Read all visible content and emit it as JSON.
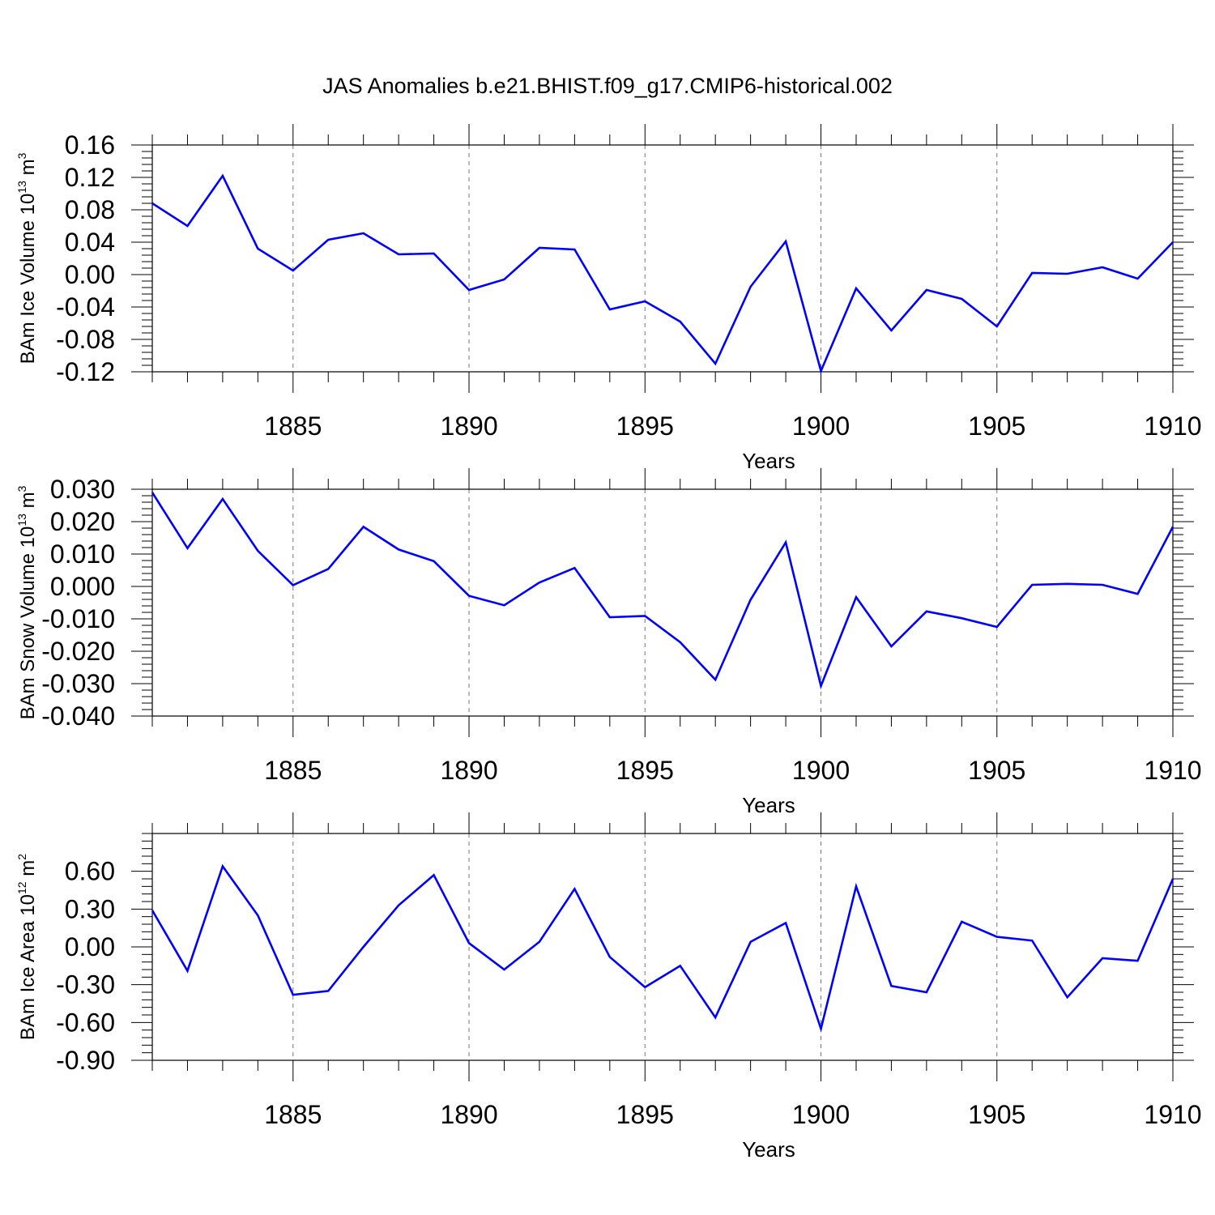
{
  "figure": {
    "title": "JAS Anomalies b.e21.BHIST.f09_g17.CMIP6-historical.002",
    "line_color": "#0000ff",
    "grid_color": "#777777"
  },
  "chart_data": [
    {
      "type": "line",
      "title": "",
      "xlabel": "Years",
      "ylabel": {
        "text": "BAm Ice Volume 10",
        "exp": "13",
        "unit": " m",
        "unit_exp": "3"
      },
      "xlim": [
        1881,
        1910
      ],
      "ylim": [
        -0.12,
        0.16
      ],
      "xticks": [
        1885,
        1890,
        1895,
        1900,
        1905,
        1910
      ],
      "yticks": [
        -0.12,
        -0.08,
        -0.04,
        0.0,
        0.04,
        0.08,
        0.12,
        0.16
      ],
      "ytick_labels": [
        "-0.12",
        "-0.08",
        "-0.04",
        "0.00",
        "0.04",
        "0.08",
        "0.12",
        "0.16"
      ],
      "grid": "vertical dashed at major x ticks",
      "x": [
        1881,
        1882,
        1883,
        1884,
        1885,
        1886,
        1887,
        1888,
        1889,
        1890,
        1891,
        1892,
        1893,
        1894,
        1895,
        1896,
        1897,
        1898,
        1899,
        1900,
        1901,
        1902,
        1903,
        1904,
        1905,
        1906,
        1907,
        1908,
        1909,
        1910
      ],
      "series": [
        {
          "values": [
            0.088,
            0.06,
            0.122,
            0.032,
            0.005,
            0.043,
            0.051,
            0.025,
            0.026,
            -0.019,
            -0.006,
            0.033,
            0.031,
            -0.043,
            -0.033,
            -0.058,
            -0.11,
            -0.015,
            0.041,
            -0.119,
            -0.017,
            -0.069,
            -0.019,
            -0.03,
            -0.064,
            0.002,
            0.001,
            0.009,
            -0.005,
            0.04
          ]
        }
      ]
    },
    {
      "type": "line",
      "title": "",
      "xlabel": "Years",
      "ylabel": {
        "text": "BAm Snow Volume 10",
        "exp": "13",
        "unit": " m",
        "unit_exp": "3"
      },
      "xlim": [
        1881,
        1910
      ],
      "ylim": [
        -0.04,
        0.03
      ],
      "xticks": [
        1885,
        1890,
        1895,
        1900,
        1905,
        1910
      ],
      "yticks": [
        -0.04,
        -0.03,
        -0.02,
        -0.01,
        0.0,
        0.01,
        0.02,
        0.03
      ],
      "ytick_labels": [
        "-0.040",
        "-0.030",
        "-0.020",
        "-0.010",
        "0.000",
        "0.010",
        "0.020",
        "0.030"
      ],
      "grid": "vertical dashed at major x ticks",
      "x": [
        1881,
        1882,
        1883,
        1884,
        1885,
        1886,
        1887,
        1888,
        1889,
        1890,
        1891,
        1892,
        1893,
        1894,
        1895,
        1896,
        1897,
        1898,
        1899,
        1900,
        1901,
        1902,
        1903,
        1904,
        1905,
        1906,
        1907,
        1908,
        1909,
        1910
      ],
      "series": [
        {
          "values": [
            0.029,
            0.0118,
            0.027,
            0.011,
            0.0004,
            0.0054,
            0.0184,
            0.0114,
            0.0078,
            -0.0029,
            -0.0058,
            0.0012,
            0.0057,
            -0.0095,
            -0.0091,
            -0.0172,
            -0.0288,
            -0.0041,
            0.0136,
            -0.0307,
            -0.0033,
            -0.0185,
            -0.0077,
            -0.0098,
            -0.0125,
            0.0005,
            0.0008,
            0.0005,
            -0.0023,
            0.0184
          ]
        }
      ]
    },
    {
      "type": "line",
      "title": "",
      "xlabel": "Years",
      "ylabel": {
        "text": "BAm Ice Area 10",
        "exp": "12",
        "unit": " m",
        "unit_exp": "2"
      },
      "xlim": [
        1881,
        1910
      ],
      "ylim": [
        -0.9,
        0.9
      ],
      "xticks": [
        1885,
        1890,
        1895,
        1900,
        1905,
        1910
      ],
      "yticks": [
        -0.9,
        -0.6,
        -0.3,
        0.0,
        0.3,
        0.6
      ],
      "ytick_labels": [
        "-0.90",
        "-0.60",
        "-0.30",
        "0.00",
        "0.30",
        "0.60"
      ],
      "grid": "vertical dashed at major x ticks",
      "x": [
        1881,
        1882,
        1883,
        1884,
        1885,
        1886,
        1887,
        1888,
        1889,
        1890,
        1891,
        1892,
        1893,
        1894,
        1895,
        1896,
        1897,
        1898,
        1899,
        1900,
        1901,
        1902,
        1903,
        1904,
        1905,
        1906,
        1907,
        1908,
        1909,
        1910
      ],
      "series": [
        {
          "values": [
            0.29,
            -0.19,
            0.64,
            0.25,
            -0.38,
            -0.35,
            0.0,
            0.33,
            0.57,
            0.03,
            -0.18,
            0.04,
            0.46,
            -0.08,
            -0.32,
            -0.15,
            -0.56,
            0.04,
            0.19,
            -0.65,
            0.48,
            -0.31,
            -0.36,
            0.2,
            0.08,
            0.05,
            -0.4,
            -0.09,
            -0.11,
            0.54
          ]
        }
      ]
    }
  ]
}
